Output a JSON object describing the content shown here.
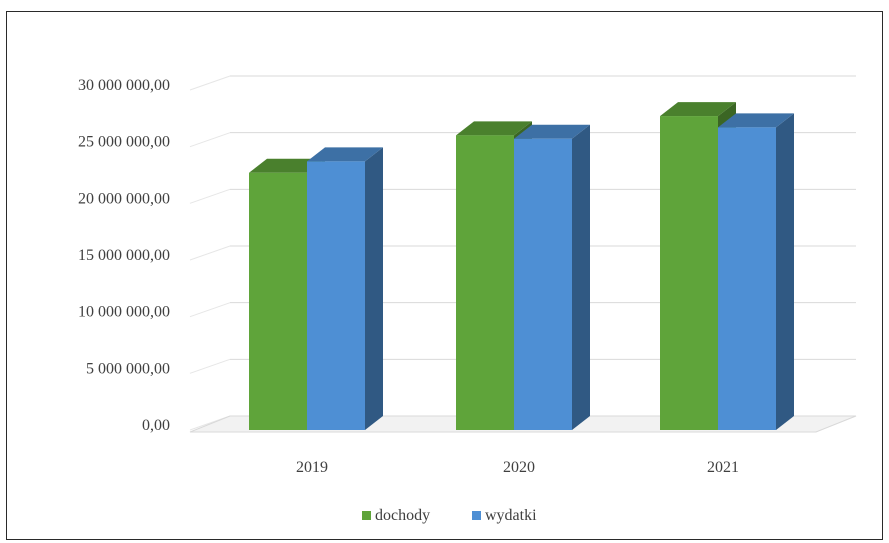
{
  "chart_data": {
    "type": "bar",
    "categories": [
      "2019",
      "2020",
      "2021"
    ],
    "series": [
      {
        "name": "dochody",
        "values": [
          22700000,
          26000000,
          27700000
        ],
        "color": "#5fa43a"
      },
      {
        "name": "wydatki",
        "values": [
          23700000,
          25700000,
          26700000
        ],
        "color": "#4e8fd4"
      }
    ],
    "ylim": [
      0,
      30000000
    ],
    "ytick_values": [
      0,
      5000000,
      10000000,
      15000000,
      20000000,
      25000000,
      30000000
    ],
    "ytick_labels": [
      "0,00",
      "5 000 000,00",
      "10 000 000,00",
      "15 000 000,00",
      "20 000 000,00",
      "25 000 000,00",
      "30 000 000,00"
    ],
    "grid": true,
    "legend_position": "bottom",
    "style": "3d-column"
  }
}
